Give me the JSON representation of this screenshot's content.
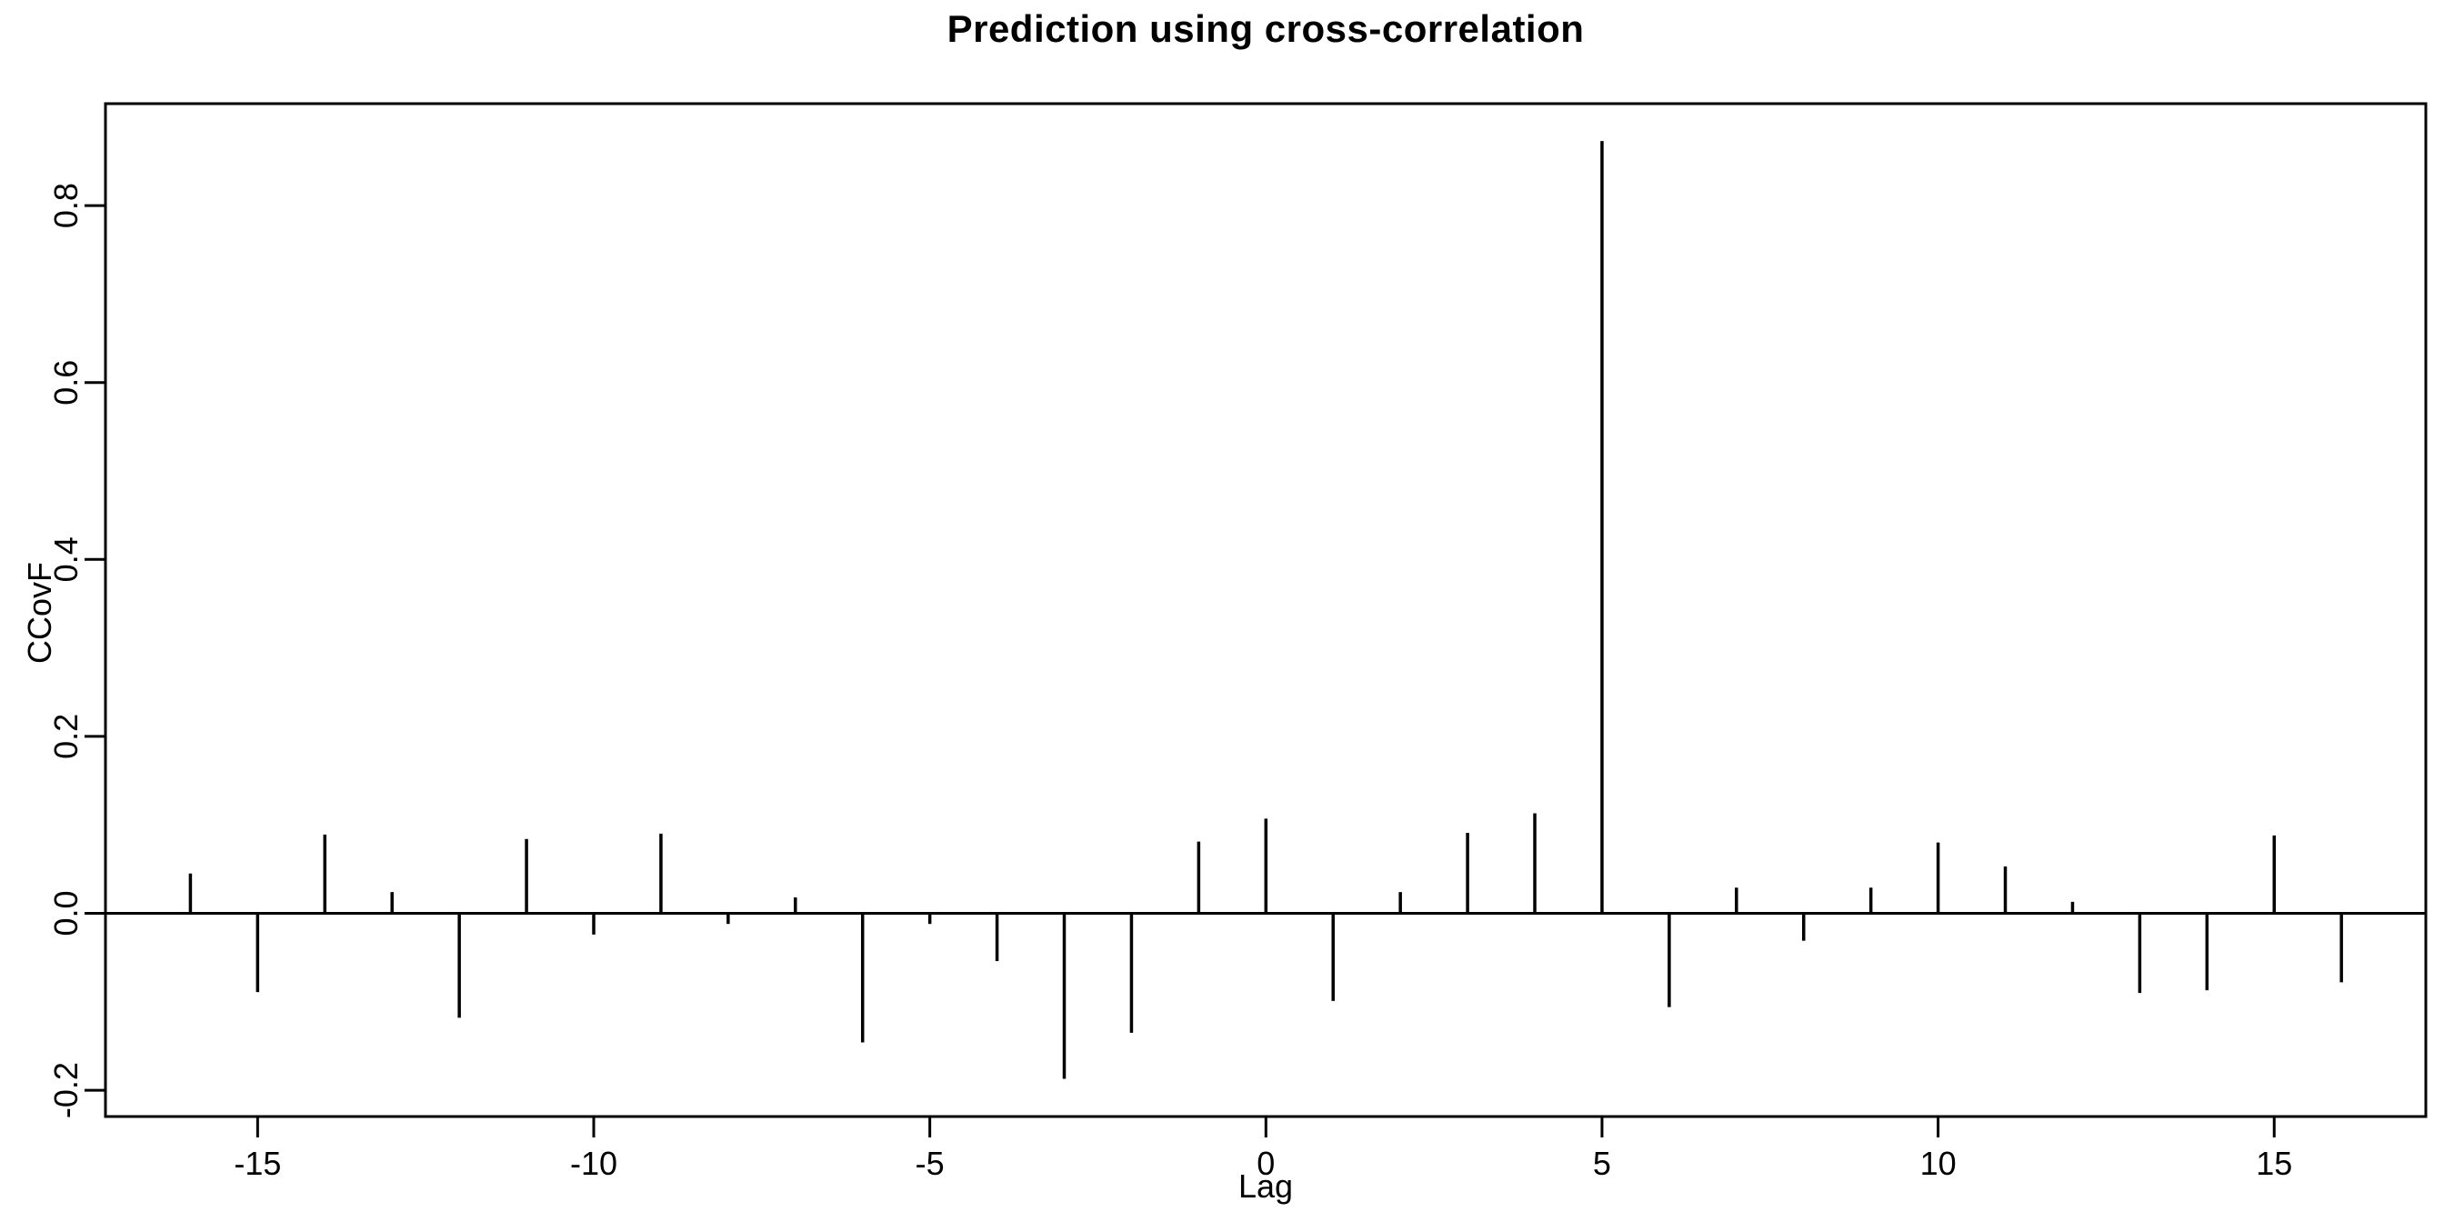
{
  "chart_data": {
    "type": "bar",
    "subtype": "vertical-spike (R cross-correlation plot)",
    "title": "Prediction using cross-correlation",
    "xlabel": "Lag",
    "ylabel": "CCovF",
    "x": [
      -16,
      -15,
      -14,
      -13,
      -12,
      -11,
      -10,
      -9,
      -8,
      -7,
      -6,
      -5,
      -4,
      -3,
      -2,
      -1,
      0,
      1,
      2,
      3,
      4,
      5,
      6,
      7,
      8,
      9,
      10,
      11,
      12,
      13,
      14,
      15,
      16
    ],
    "values": [
      0.045,
      -0.089,
      0.089,
      0.024,
      -0.118,
      0.084,
      -0.024,
      0.09,
      -0.012,
      0.018,
      -0.146,
      -0.012,
      -0.054,
      -0.187,
      -0.135,
      0.081,
      0.107,
      -0.099,
      0.024,
      0.091,
      0.113,
      0.873,
      -0.106,
      0.029,
      -0.031,
      0.029,
      0.08,
      0.053,
      0.013,
      -0.09,
      -0.087,
      0.088,
      -0.078
    ],
    "peak": {
      "lag": 5,
      "value": 0.873
    },
    "xticks": [
      -15,
      -10,
      -5,
      0,
      5,
      10,
      15
    ],
    "xtick_labels": [
      "-15",
      "-10",
      "-5",
      "0",
      "5",
      "10",
      "15"
    ],
    "yticks": [
      -0.2,
      0.0,
      0.2,
      0.4,
      0.6,
      0.8
    ],
    "ytick_labels": [
      "-0.2",
      "0.0",
      "0.2",
      "0.4",
      "0.6",
      "0.8"
    ],
    "xlim": [
      -17.25,
      17.25
    ],
    "ylim": [
      -0.23,
      0.915
    ],
    "baseline": 0.0,
    "grid": false,
    "legend": "none",
    "colors": {
      "foreground": "#000000",
      "background": "#ffffff"
    }
  }
}
